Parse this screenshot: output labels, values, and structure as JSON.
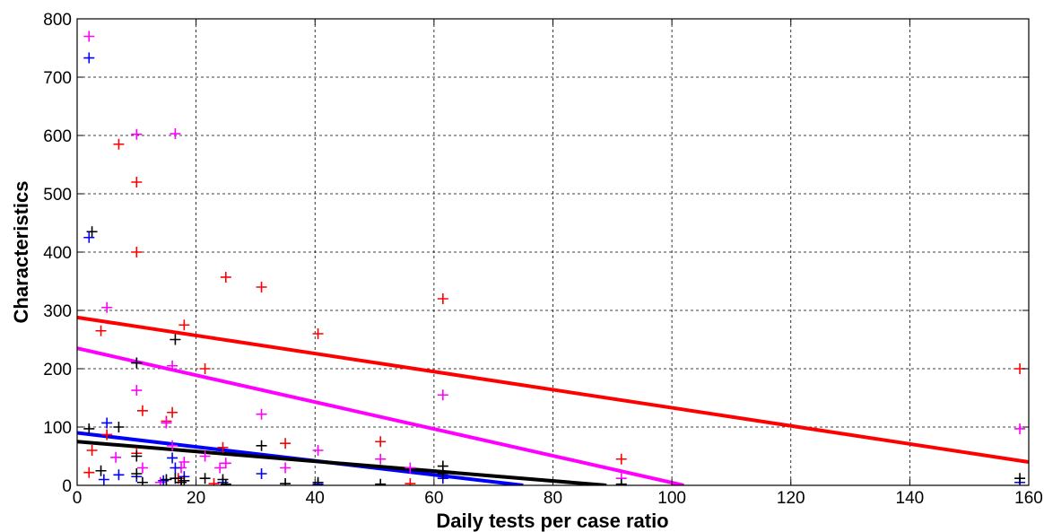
{
  "chart_data": {
    "type": "scatter",
    "title": "",
    "xlabel": "Daily tests per case ratio",
    "ylabel": "Characteristics",
    "xlim": [
      0,
      160
    ],
    "ylim": [
      0,
      800
    ],
    "xticks": [
      0,
      20,
      40,
      60,
      80,
      100,
      120,
      140,
      160
    ],
    "yticks": [
      0,
      100,
      200,
      300,
      400,
      500,
      600,
      700,
      800
    ],
    "grid": true,
    "legend": "none",
    "series": [
      {
        "color": "#ff0000",
        "marker": "+",
        "points": [
          [
            2,
            22
          ],
          [
            2.5,
            60
          ],
          [
            4,
            265
          ],
          [
            5,
            87
          ],
          [
            7,
            585
          ],
          [
            10,
            520
          ],
          [
            10,
            400
          ],
          [
            10,
            55
          ],
          [
            11,
            128
          ],
          [
            15,
            110
          ],
          [
            16,
            125
          ],
          [
            17,
            12
          ],
          [
            18,
            275
          ],
          [
            21.5,
            200
          ],
          [
            23,
            3
          ],
          [
            24.5,
            65
          ],
          [
            25,
            357
          ],
          [
            31,
            340
          ],
          [
            35,
            72
          ],
          [
            40.5,
            260
          ],
          [
            51,
            75
          ],
          [
            56,
            3
          ],
          [
            61.5,
            320
          ],
          [
            91.5,
            45
          ],
          [
            158.5,
            200
          ]
        ],
        "trend": [
          [
            0,
            288
          ],
          [
            160,
            40
          ]
        ]
      },
      {
        "color": "#ff00ff",
        "marker": "+",
        "points": [
          [
            2,
            770
          ],
          [
            5,
            305
          ],
          [
            10,
            602
          ],
          [
            16.5,
            603
          ],
          [
            10,
            163
          ],
          [
            16,
            205
          ],
          [
            15,
            107
          ],
          [
            6.5,
            48
          ],
          [
            11,
            30
          ],
          [
            17.5,
            30
          ],
          [
            18,
            40
          ],
          [
            21.5,
            50
          ],
          [
            24,
            30
          ],
          [
            25,
            38
          ],
          [
            31,
            122
          ],
          [
            35,
            30
          ],
          [
            40.5,
            60
          ],
          [
            51,
            45
          ],
          [
            56,
            30
          ],
          [
            61.5,
            155
          ],
          [
            91.5,
            12
          ],
          [
            158.5,
            97
          ],
          [
            14,
            5
          ],
          [
            16,
            68
          ]
        ],
        "trend": [
          [
            0,
            235
          ],
          [
            102,
            0
          ]
        ]
      },
      {
        "color": "#0000ff",
        "marker": "+",
        "points": [
          [
            2,
            733
          ],
          [
            2,
            425
          ],
          [
            5,
            107
          ],
          [
            4.5,
            10
          ],
          [
            7,
            18
          ],
          [
            10,
            15
          ],
          [
            16,
            47
          ],
          [
            16.5,
            30
          ],
          [
            17.5,
            5
          ],
          [
            18,
            15
          ],
          [
            14.5,
            8
          ],
          [
            24.5,
            5
          ],
          [
            31,
            20
          ],
          [
            40.5,
            2
          ],
          [
            61.5,
            12
          ],
          [
            158.5,
            5
          ],
          [
            10,
            210
          ]
        ],
        "trend": [
          [
            0,
            90
          ],
          [
            75,
            0
          ]
        ]
      },
      {
        "color": "#000000",
        "marker": "+",
        "points": [
          [
            2,
            97
          ],
          [
            2.5,
            435
          ],
          [
            7,
            100
          ],
          [
            10,
            210
          ],
          [
            10,
            50
          ],
          [
            16.5,
            250
          ],
          [
            4,
            25
          ],
          [
            10,
            20
          ],
          [
            11,
            5
          ],
          [
            15,
            10
          ],
          [
            16.5,
            12
          ],
          [
            17.5,
            5
          ],
          [
            18,
            8
          ],
          [
            21.5,
            12
          ],
          [
            24.5,
            10
          ],
          [
            25,
            2
          ],
          [
            31,
            68
          ],
          [
            35,
            3
          ],
          [
            40.5,
            5
          ],
          [
            51,
            2
          ],
          [
            61.5,
            33
          ],
          [
            91.5,
            2
          ],
          [
            158.5,
            12
          ],
          [
            61.5,
            20
          ]
        ],
        "trend": [
          [
            0,
            75
          ],
          [
            89,
            0
          ]
        ]
      }
    ]
  }
}
